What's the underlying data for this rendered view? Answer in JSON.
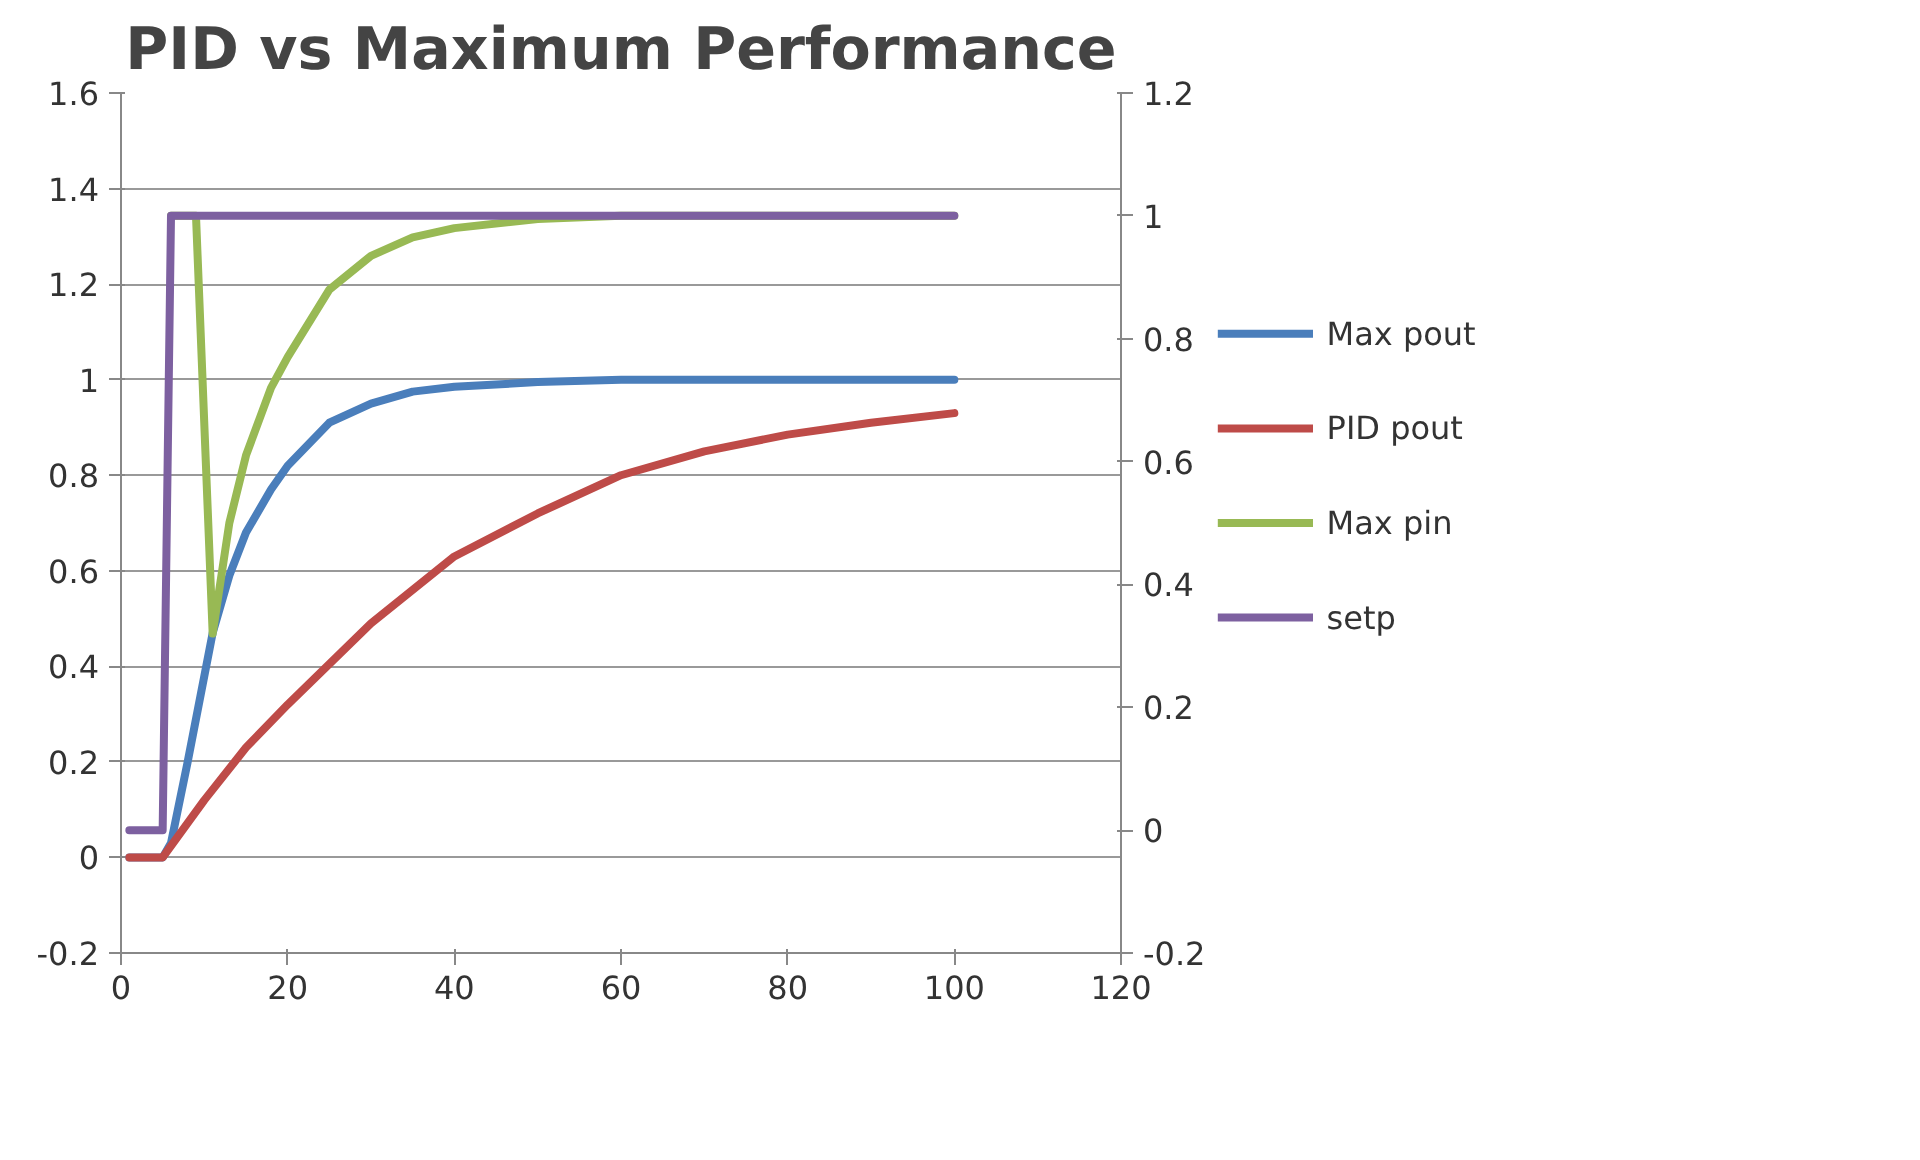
{
  "chart_data": {
    "type": "line",
    "title": "PID vs Maximum Performance",
    "xlim": [
      0,
      120
    ],
    "xticks": [
      0,
      20,
      40,
      60,
      80,
      100,
      120
    ],
    "ylim": [
      -0.2,
      1.6
    ],
    "yticks": [
      -0.2,
      0,
      0.2,
      0.4,
      0.6,
      0.8,
      1,
      1.2,
      1.4,
      1.6
    ],
    "y2lim": [
      -0.2,
      1.2
    ],
    "y2ticks": [
      -0.2,
      0,
      0.2,
      0.4,
      0.6,
      0.8,
      1,
      1.2
    ],
    "grid": "y",
    "legend": "right",
    "marker": "none",
    "line_style": "solid",
    "series": [
      {
        "name": "Max pout",
        "color": "#4a7ebb",
        "x": [
          1,
          5,
          6,
          8,
          11,
          13,
          15,
          18,
          20,
          25,
          30,
          35,
          40,
          50,
          60,
          80,
          100
        ],
        "values": [
          0,
          0,
          0.03,
          0.2,
          0.47,
          0.59,
          0.68,
          0.77,
          0.82,
          0.91,
          0.95,
          0.975,
          0.985,
          0.995,
          1,
          1,
          1
        ]
      },
      {
        "name": "PID pout",
        "color": "#be4b48",
        "x": [
          1,
          5,
          10,
          15,
          20,
          30,
          40,
          50,
          60,
          70,
          80,
          90,
          100
        ],
        "values": [
          0,
          0,
          0.12,
          0.23,
          0.32,
          0.49,
          0.63,
          0.72,
          0.8,
          0.85,
          0.885,
          0.91,
          0.93
        ]
      },
      {
        "name": "Max pin",
        "color": "#98b954",
        "axis": "y2",
        "x": [
          6,
          9,
          11,
          13,
          15,
          18,
          20,
          25,
          30,
          35,
          40,
          50,
          60,
          80,
          100
        ],
        "values": [
          1,
          1,
          0.32,
          0.5,
          0.61,
          0.72,
          0.77,
          0.88,
          0.935,
          0.965,
          0.98,
          0.995,
          1,
          1,
          1
        ]
      },
      {
        "name": "setp",
        "color": "#7d60a0",
        "axis": "y2",
        "x": [
          1,
          5,
          6,
          100
        ],
        "values": [
          0,
          0,
          1,
          1
        ]
      }
    ]
  }
}
